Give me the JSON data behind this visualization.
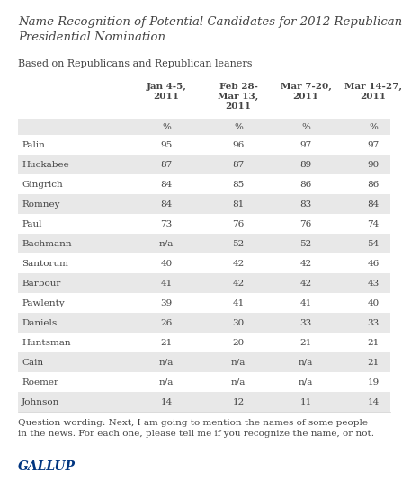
{
  "title": "Name Recognition of Potential Candidates for 2012 Republican\nPresidential Nomination",
  "subtitle": "Based on Republicans and Republican leaners",
  "col_headers": [
    "Jan 4-5,\n2011",
    "Feb 28-\nMar 13,\n2011",
    "Mar 7-20,\n2011",
    "Mar 14-27,\n2011"
  ],
  "pct_row": [
    "%",
    "%",
    "%",
    "%"
  ],
  "candidates": [
    "Palin",
    "Huckabee",
    "Gingrich",
    "Romney",
    "Paul",
    "Bachmann",
    "Santorum",
    "Barbour",
    "Pawlenty",
    "Daniels",
    "Huntsman",
    "Cain",
    "Roemer",
    "Johnson"
  ],
  "data": [
    [
      "95",
      "96",
      "97",
      "97"
    ],
    [
      "87",
      "87",
      "89",
      "90"
    ],
    [
      "84",
      "85",
      "86",
      "86"
    ],
    [
      "84",
      "81",
      "83",
      "84"
    ],
    [
      "73",
      "76",
      "76",
      "74"
    ],
    [
      "n/a",
      "52",
      "52",
      "54"
    ],
    [
      "40",
      "42",
      "42",
      "46"
    ],
    [
      "41",
      "42",
      "42",
      "43"
    ],
    [
      "39",
      "41",
      "41",
      "40"
    ],
    [
      "26",
      "30",
      "33",
      "33"
    ],
    [
      "21",
      "20",
      "21",
      "21"
    ],
    [
      "n/a",
      "n/a",
      "n/a",
      "21"
    ],
    [
      "n/a",
      "n/a",
      "n/a",
      "19"
    ],
    [
      "14",
      "12",
      "11",
      "14"
    ]
  ],
  "footnote": "Question wording: Next, I am going to mention the names of some people\nin the news. For each one, please tell me if you recognize the name, or not.",
  "source": "GALLUP",
  "white": "#ffffff",
  "row_shade": "#e8e8e8",
  "title_color": "#444444",
  "text_color": "#444444",
  "gallup_color": "#003580",
  "font_family": "serif"
}
